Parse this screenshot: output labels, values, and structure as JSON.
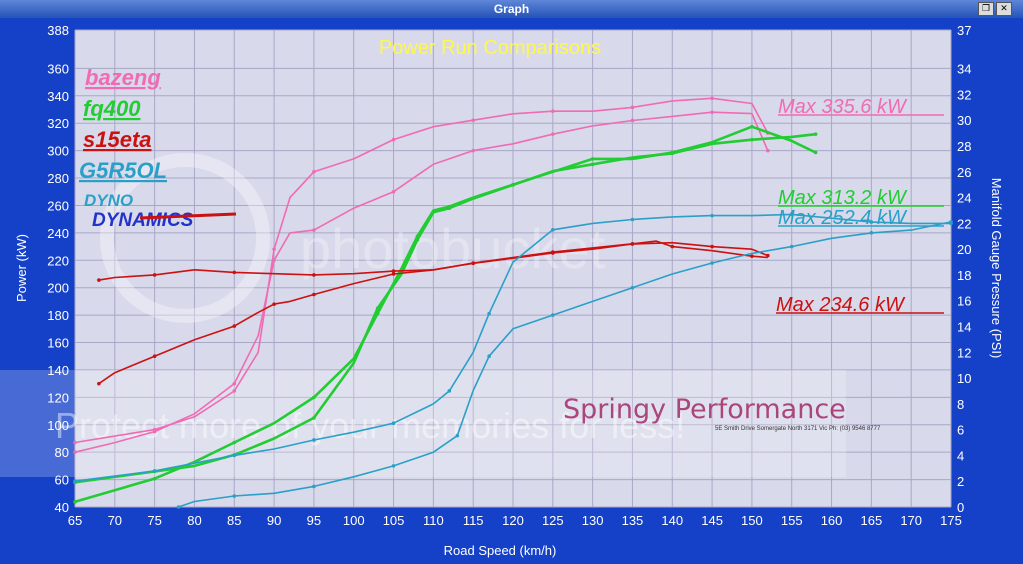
{
  "window": {
    "title": "Graph"
  },
  "chart_data": {
    "type": "line",
    "title": "Power Run Comparisons",
    "xlabel": "Road Speed (km/h)",
    "ylabel": "Power (kW)",
    "y2label": "Manifold Gauge Pressure (PSI)",
    "xlim": [
      65,
      175
    ],
    "ylim": [
      40,
      388
    ],
    "y2lim": [
      0,
      37
    ],
    "xticks": [
      65,
      70,
      75,
      80,
      85,
      90,
      95,
      100,
      105,
      110,
      115,
      120,
      125,
      130,
      135,
      140,
      145,
      150,
      155,
      160,
      165,
      170,
      175
    ],
    "yticks": [
      40,
      60,
      80,
      100,
      120,
      140,
      160,
      180,
      200,
      220,
      240,
      260,
      280,
      300,
      320,
      340,
      360,
      388
    ],
    "y2ticks": [
      0,
      2,
      4,
      6,
      8,
      10,
      12,
      14,
      16,
      18,
      20,
      22,
      24,
      26,
      28,
      30,
      32,
      34,
      37
    ],
    "legend": [
      "bazeng",
      "fq400",
      "s15eta",
      "G5R5OL"
    ],
    "grid": true,
    "series": [
      {
        "name": "bazeng",
        "color": "#f06bb4",
        "kind": "power",
        "x": [
          65,
          70,
          75,
          80,
          85,
          88,
          90,
          92,
          95,
          100,
          105,
          110,
          115,
          120,
          125,
          130,
          135,
          140,
          145,
          150,
          152
        ],
        "y": [
          80,
          87,
          95,
          108,
          130,
          165,
          220,
          240,
          242,
          258,
          270,
          290,
          300,
          305,
          312,
          318,
          322,
          325,
          328,
          327,
          300
        ]
      },
      {
        "name": "bazeng",
        "color": "#f06bb4",
        "kind": "boost",
        "x": [
          65,
          70,
          75,
          80,
          85,
          88,
          90,
          92,
          95,
          100,
          105,
          110,
          115,
          120,
          125,
          130,
          135,
          140,
          145,
          150,
          152
        ],
        "y": [
          5,
          5.5,
          6,
          7,
          9,
          12,
          20,
          24,
          26,
          27,
          28.5,
          29.5,
          30,
          30.5,
          30.7,
          30.7,
          31,
          31.5,
          31.7,
          31.3,
          29
        ]
      },
      {
        "name": "fq400",
        "color": "#22cc33",
        "kind": "power",
        "x": [
          65,
          70,
          75,
          80,
          85,
          90,
          95,
          100,
          103,
          106,
          108,
          110,
          112,
          115,
          120,
          125,
          130,
          135,
          140,
          145,
          150,
          155,
          158
        ],
        "y": [
          58,
          62,
          66,
          70,
          78,
          90,
          105,
          145,
          185,
          210,
          235,
          255,
          258,
          265,
          275,
          285,
          290,
          295,
          298,
          305,
          308,
          310,
          312
        ]
      },
      {
        "name": "fq400",
        "color": "#22cc33",
        "kind": "boost",
        "x": [
          65,
          70,
          75,
          80,
          85,
          90,
          95,
          100,
          103,
          106,
          108,
          110,
          112,
          115,
          120,
          125,
          130,
          135,
          140,
          145,
          150,
          155,
          158
        ],
        "y": [
          0.4,
          1.3,
          2.2,
          3.5,
          5,
          6.5,
          8.5,
          11.5,
          15,
          18.5,
          21,
          23,
          23.3,
          24,
          25,
          26,
          27,
          27,
          27.5,
          28.3,
          29.5,
          28.4,
          27.5
        ]
      },
      {
        "name": "s15eta",
        "color": "#cc1111",
        "kind": "power",
        "x": [
          68,
          70,
          75,
          80,
          85,
          88,
          90,
          92,
          95,
          100,
          105,
          110,
          115,
          120,
          125,
          130,
          135,
          138,
          140,
          145,
          150,
          152
        ],
        "y": [
          130,
          138,
          150,
          162,
          172,
          182,
          188,
          190,
          195,
          203,
          210,
          213,
          218,
          222,
          226,
          229,
          232,
          234,
          230,
          227,
          223,
          222
        ]
      },
      {
        "name": "s15eta",
        "color": "#cc1111",
        "kind": "boost",
        "x": [
          68,
          70,
          75,
          80,
          85,
          90,
          95,
          100,
          105,
          110,
          115,
          120,
          125,
          130,
          135,
          140,
          145,
          150,
          152
        ],
        "y": [
          17.6,
          17.8,
          18,
          18.4,
          18.2,
          18.1,
          18,
          18.1,
          18.3,
          18.4,
          18.9,
          19.3,
          19.7,
          20,
          20.4,
          20.5,
          20.2,
          20,
          19.5
        ]
      },
      {
        "name": "G5R5OL",
        "color": "#2aa0c8",
        "kind": "power",
        "x": [
          78,
          80,
          85,
          90,
          95,
          100,
          105,
          110,
          113,
          115,
          117,
          120,
          125,
          130,
          135,
          140,
          145,
          150,
          155,
          160,
          165,
          170,
          175
        ],
        "y": [
          40,
          44,
          48,
          50,
          55,
          62,
          70,
          80,
          92,
          125,
          150,
          170,
          180,
          190,
          200,
          210,
          218,
          225,
          230,
          236,
          240,
          242,
          248
        ]
      },
      {
        "name": "G5R5OL",
        "color": "#2aa0c8",
        "kind": "boost",
        "x": [
          65,
          70,
          75,
          80,
          85,
          90,
          95,
          100,
          105,
          110,
          112,
          115,
          117,
          120,
          125,
          130,
          135,
          140,
          145,
          150,
          155,
          160,
          165,
          170,
          175
        ],
        "y": [
          2,
          2.4,
          2.8,
          3.4,
          4,
          4.5,
          5.2,
          5.8,
          6.5,
          8,
          9,
          12,
          15,
          19,
          21.5,
          22,
          22.3,
          22.5,
          22.6,
          22.6,
          22.7,
          22.4,
          22.1,
          22,
          22
        ]
      }
    ],
    "annotations": [
      {
        "text": "Max 335.6 kW",
        "color": "#f06bb4"
      },
      {
        "text": "Max 313.2 kW",
        "color": "#22cc33"
      },
      {
        "text": "Max 252.4 kW",
        "color": "#2aa0c8"
      },
      {
        "text": "Max 234.6 kW",
        "color": "#cc1111"
      }
    ]
  },
  "watermark": {
    "brand": "Springy Performance",
    "address": "5E Smith Drive Somergate North 3171 Vic Ph: (03) 9546 8777",
    "overlay": "Protect more of your memories for less!",
    "logo": "DYNO DYNAMICS"
  }
}
